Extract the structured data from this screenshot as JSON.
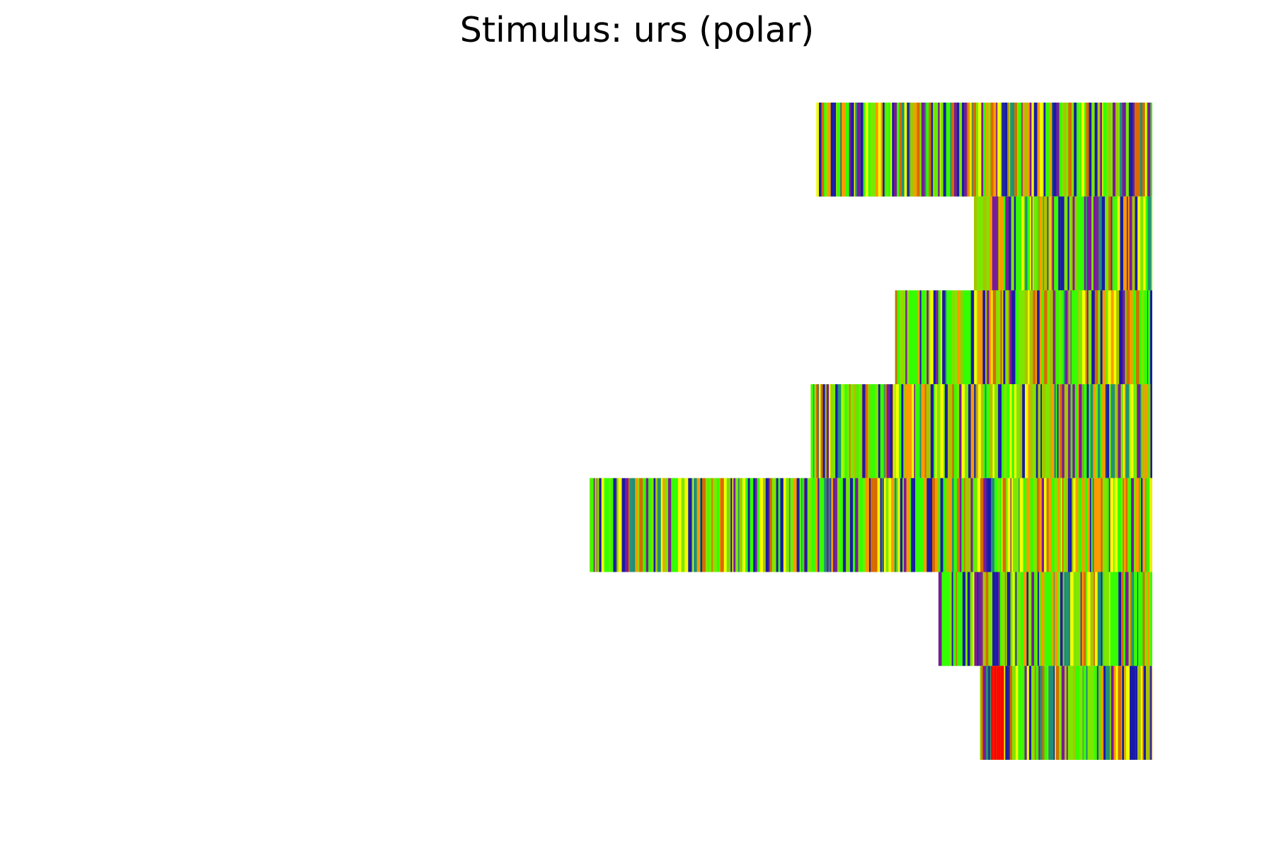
{
  "chart_data": {
    "type": "heatmap",
    "title": "Stimulus: urs (polar)",
    "axes_visible": false,
    "xlabel": "",
    "ylabel": "",
    "row_order": "top-to-bottom",
    "rows": [
      {
        "start": 0.403,
        "end": 1.0
      },
      {
        "start": 0.683,
        "end": 1.0
      },
      {
        "start": 0.543,
        "end": 1.0
      },
      {
        "start": 0.393,
        "end": 1.0
      },
      {
        "start": 0.0,
        "end": 1.0
      },
      {
        "start": 0.62,
        "end": 1.0
      },
      {
        "start": 0.694,
        "end": 1.0
      }
    ],
    "colormap": "prism",
    "colors": {
      "blue": "#1a1aa8",
      "green": "#33ff00",
      "light_green": "#7fe600",
      "yellow": "#f5ff00",
      "orange": "#ff9900",
      "dark_orange": "#d86a00",
      "red": "#ff0000",
      "purple": "#7a1a9a",
      "teal": "#1f8f7a",
      "olive": "#a8c400"
    }
  }
}
